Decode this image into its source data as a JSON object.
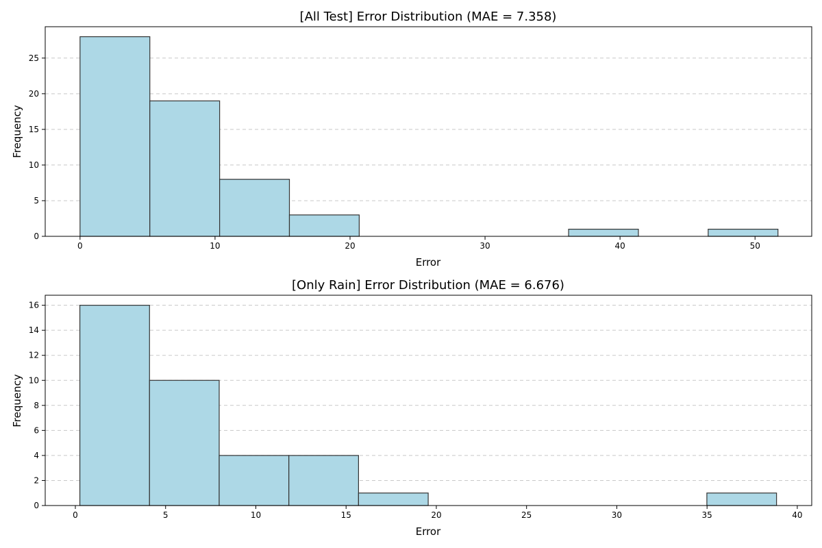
{
  "chart_data": [
    {
      "type": "bar",
      "title": "[All Test] Error Distribution (MAE = 7.358)",
      "xlabel": "Error",
      "ylabel": "Frequency",
      "xlim": [
        -2.58,
        54.2
      ],
      "ylim": [
        0,
        29.4
      ],
      "xticks": [
        0,
        10,
        20,
        30,
        40,
        50
      ],
      "yticks": [
        0,
        5,
        10,
        15,
        20,
        25
      ],
      "bin_edges": [
        0,
        5.17,
        10.34,
        15.51,
        20.68,
        25.85,
        31.02,
        36.19,
        41.36,
        46.53,
        51.7
      ],
      "values": [
        28,
        19,
        8,
        3,
        0,
        0,
        0,
        1,
        0,
        1
      ],
      "grid": "y",
      "bar_color": "#add8e6"
    },
    {
      "type": "bar",
      "title": "[Only Rain] Error Distribution (MAE = 6.676)",
      "xlabel": "Error",
      "ylabel": "Frequency",
      "xlim": [
        -1.67,
        40.8
      ],
      "ylim": [
        0,
        16.8
      ],
      "xticks": [
        0,
        5,
        10,
        15,
        20,
        25,
        30,
        35,
        40
      ],
      "yticks": [
        0,
        2,
        4,
        6,
        8,
        10,
        12,
        14,
        16
      ],
      "bin_edges": [
        0.25,
        4.11,
        7.97,
        11.83,
        15.69,
        19.55,
        23.41,
        27.27,
        31.13,
        34.99,
        38.85
      ],
      "values": [
        16,
        10,
        4,
        4,
        1,
        0,
        0,
        0,
        0,
        1
      ],
      "grid": "y",
      "bar_color": "#add8e6"
    }
  ]
}
